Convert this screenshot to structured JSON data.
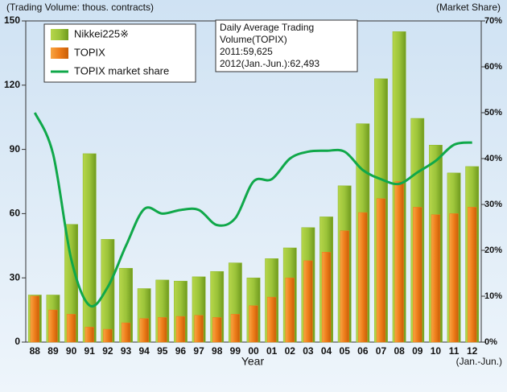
{
  "chart_data": {
    "type": "bar_line",
    "y_label": "(Trading Volume: thous. contracts)",
    "y2_label": "(Market Share)",
    "x_label": "Year",
    "x_note": "(Jan.-Jun.)",
    "annotation": [
      "Daily Average Trading",
      "Volume(TOPIX)",
      "2011:59,625",
      "2012(Jan.-Jun.):62,493"
    ],
    "categories": [
      "88",
      "89",
      "90",
      "91",
      "92",
      "93",
      "94",
      "95",
      "96",
      "97",
      "98",
      "99",
      "00",
      "01",
      "02",
      "03",
      "04",
      "05",
      "06",
      "07",
      "08",
      "09",
      "10",
      "11",
      "12"
    ],
    "series": [
      {
        "name": "Nikkei225※",
        "color": "#8db82a",
        "type": "bar",
        "values": [
          22,
          22,
          55,
          88,
          48,
          34.5,
          25,
          29,
          28.5,
          30.5,
          33,
          37,
          30,
          39,
          44,
          53.5,
          58.5,
          73,
          102,
          123,
          145,
          104.5,
          92,
          79,
          82
        ]
      },
      {
        "name": "TOPIX",
        "color": "#ee7d1a",
        "type": "bar",
        "values": [
          21.5,
          15,
          13,
          7,
          6,
          9,
          11,
          11.5,
          12,
          12.5,
          11.5,
          13,
          17,
          21,
          30,
          38,
          42,
          52,
          60.5,
          67,
          75,
          63,
          59.5,
          60,
          63
        ]
      },
      {
        "name": "TOPIX market share",
        "color": "#10a84a",
        "type": "line",
        "axis": "y2",
        "values": [
          50,
          41,
          18,
          8,
          12,
          21,
          29,
          28,
          28.8,
          28.8,
          25.5,
          27,
          35,
          35.5,
          40,
          41.5,
          41.7,
          41.5,
          37.5,
          35.5,
          34.5,
          37,
          39.5,
          43,
          43.5
        ]
      }
    ],
    "ylim": [
      0,
      150
    ],
    "yticks": [
      0,
      30,
      60,
      90,
      120,
      150
    ],
    "y2lim": [
      0,
      70
    ],
    "y2ticks": [
      {
        "value": 0,
        "label": "0%"
      },
      {
        "value": 10,
        "label": "10%"
      },
      {
        "value": 20,
        "label": "20%"
      },
      {
        "value": 30,
        "label": "30%"
      },
      {
        "value": 40,
        "label": "40%"
      },
      {
        "value": 50,
        "label": "50%"
      },
      {
        "value": 60,
        "label": "60%"
      },
      {
        "value": 70,
        "label": "70%"
      }
    ]
  }
}
